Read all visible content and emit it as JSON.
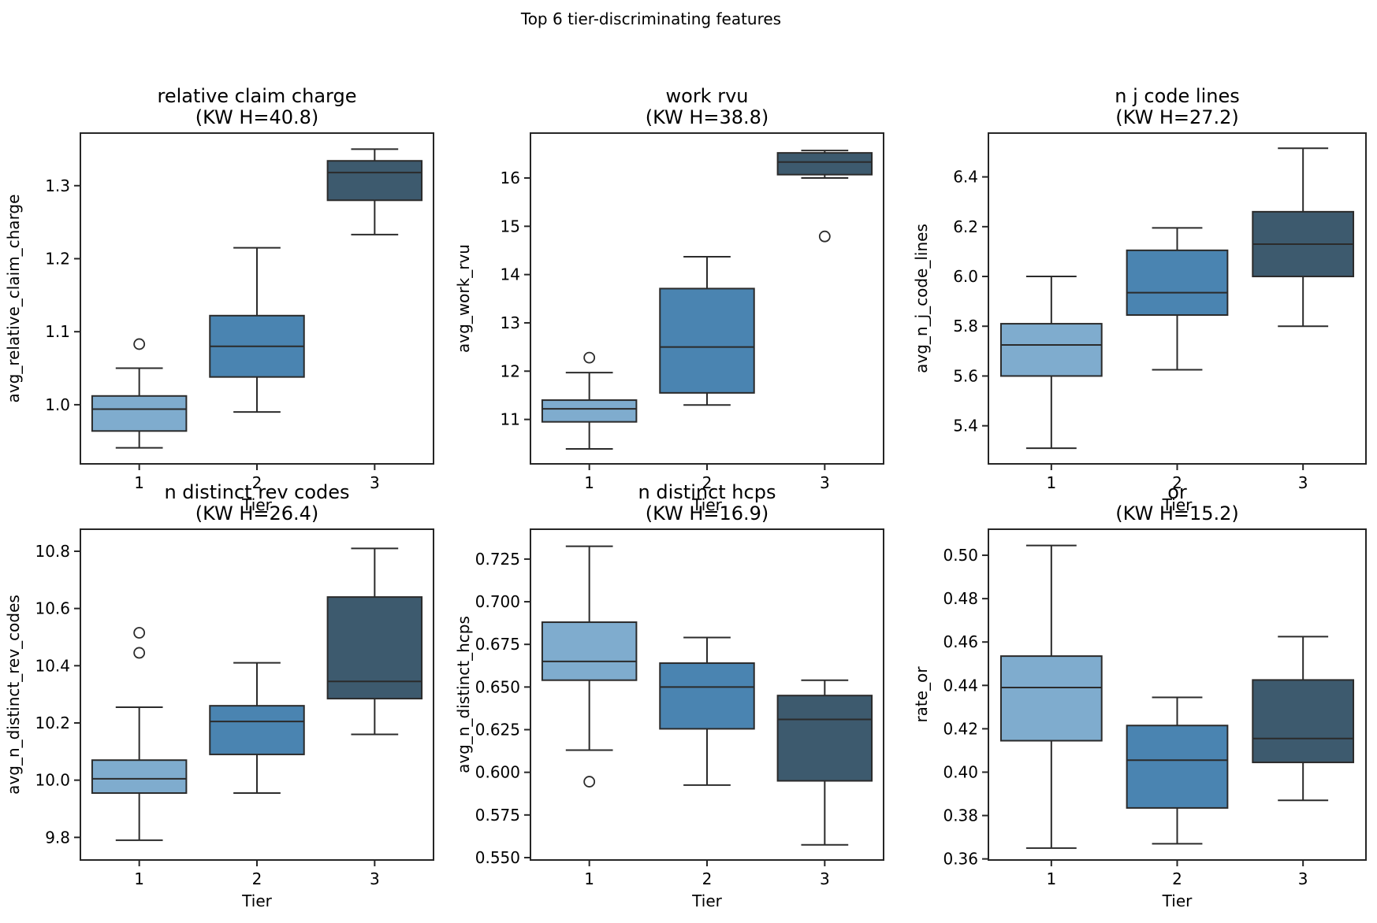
{
  "suptitle": "Top 6 tier-discriminating features",
  "palette": {
    "tier_fills": [
      "#7FACCE",
      "#4A84B1",
      "#3D5A6E"
    ],
    "edge": "#2B2B2B",
    "spine": "#262626",
    "text": "#000000",
    "background": "#FFFFFF"
  },
  "chart_data": [
    {
      "type": "box",
      "title": "relative claim charge",
      "subtitle": "(KW H=40.8)",
      "kw_h": 40.8,
      "ylabel": "avg_relative_claim_charge",
      "xlabel": "Tier",
      "categories": [
        "1",
        "2",
        "3"
      ],
      "ylim": [
        0.919,
        1.372
      ],
      "ytick_values": [
        1.0,
        1.1,
        1.2,
        1.3
      ],
      "ytick_labels": [
        "1.0",
        "1.1",
        "1.2",
        "1.3"
      ],
      "series": [
        {
          "tier": "1",
          "whisker_low": 0.941,
          "q1": 0.964,
          "median": 0.994,
          "q3": 1.012,
          "whisker_high": 1.05,
          "outliers": [
            1.083
          ]
        },
        {
          "tier": "2",
          "whisker_low": 0.99,
          "q1": 1.038,
          "median": 1.08,
          "q3": 1.122,
          "whisker_high": 1.215,
          "outliers": []
        },
        {
          "tier": "3",
          "whisker_low": 1.233,
          "q1": 1.28,
          "median": 1.318,
          "q3": 1.334,
          "whisker_high": 1.35,
          "outliers": []
        }
      ]
    },
    {
      "type": "box",
      "title": "work rvu",
      "subtitle": "(KW H=38.8)",
      "kw_h": 38.8,
      "ylabel": "avg_work_rvu",
      "xlabel": "Tier",
      "categories": [
        "1",
        "2",
        "3"
      ],
      "ylim": [
        10.08,
        16.93
      ],
      "ytick_values": [
        11,
        12,
        13,
        14,
        15,
        16
      ],
      "ytick_labels": [
        "11",
        "12",
        "13",
        "14",
        "15",
        "16"
      ],
      "series": [
        {
          "tier": "1",
          "whisker_low": 10.39,
          "q1": 10.95,
          "median": 11.22,
          "q3": 11.4,
          "whisker_high": 11.97,
          "outliers": [
            12.28
          ]
        },
        {
          "tier": "2",
          "whisker_low": 11.3,
          "q1": 11.55,
          "median": 12.5,
          "q3": 13.71,
          "whisker_high": 14.37,
          "outliers": []
        },
        {
          "tier": "3",
          "whisker_low": 16.0,
          "q1": 16.07,
          "median": 16.33,
          "q3": 16.52,
          "whisker_high": 16.57,
          "outliers": [
            14.79
          ]
        }
      ]
    },
    {
      "type": "box",
      "title": "n j code lines",
      "subtitle": "(KW H=27.2)",
      "kw_h": 27.2,
      "ylabel": "avg_n_j_code_lines",
      "xlabel": "Tier",
      "categories": [
        "1",
        "2",
        "3"
      ],
      "ylim": [
        5.247,
        6.576
      ],
      "ytick_values": [
        5.4,
        5.6,
        5.8,
        6.0,
        6.2,
        6.4
      ],
      "ytick_labels": [
        "5.4",
        "5.6",
        "5.8",
        "6.0",
        "6.2",
        "6.4"
      ],
      "series": [
        {
          "tier": "1",
          "whisker_low": 5.31,
          "q1": 5.6,
          "median": 5.725,
          "q3": 5.81,
          "whisker_high": 6.0,
          "outliers": []
        },
        {
          "tier": "2",
          "whisker_low": 5.625,
          "q1": 5.845,
          "median": 5.935,
          "q3": 6.105,
          "whisker_high": 6.195,
          "outliers": []
        },
        {
          "tier": "3",
          "whisker_low": 5.8,
          "q1": 6.0,
          "median": 6.13,
          "q3": 6.26,
          "whisker_high": 6.515,
          "outliers": []
        }
      ]
    },
    {
      "type": "box",
      "title": "n distinct rev codes",
      "subtitle": "(KW H=26.4)",
      "kw_h": 26.4,
      "ylabel": "avg_n_distinct_rev_codes",
      "xlabel": "Tier",
      "categories": [
        "1",
        "2",
        "3"
      ],
      "ylim": [
        9.721,
        10.877
      ],
      "ytick_values": [
        9.8,
        10.0,
        10.2,
        10.4,
        10.6,
        10.8
      ],
      "ytick_labels": [
        "9.8",
        "10.0",
        "10.2",
        "10.4",
        "10.6",
        "10.8"
      ],
      "series": [
        {
          "tier": "1",
          "whisker_low": 9.79,
          "q1": 9.955,
          "median": 10.005,
          "q3": 10.07,
          "whisker_high": 10.255,
          "outliers": [
            10.445,
            10.515
          ]
        },
        {
          "tier": "2",
          "whisker_low": 9.955,
          "q1": 10.09,
          "median": 10.205,
          "q3": 10.26,
          "whisker_high": 10.41,
          "outliers": []
        },
        {
          "tier": "3",
          "whisker_low": 10.16,
          "q1": 10.285,
          "median": 10.345,
          "q3": 10.64,
          "whisker_high": 10.81,
          "outliers": []
        }
      ]
    },
    {
      "type": "box",
      "title": "n distinct hcps",
      "subtitle": "(KW H=16.9)",
      "kw_h": 16.9,
      "ylabel": "avg_n_distinct_hcps",
      "xlabel": "Tier",
      "categories": [
        "1",
        "2",
        "3"
      ],
      "ylim": [
        0.5486,
        0.7425
      ],
      "ytick_values": [
        0.55,
        0.575,
        0.6,
        0.625,
        0.65,
        0.675,
        0.7,
        0.725
      ],
      "ytick_labels": [
        "0.550",
        "0.575",
        "0.600",
        "0.625",
        "0.650",
        "0.675",
        "0.700",
        "0.725"
      ],
      "series": [
        {
          "tier": "1",
          "whisker_low": 0.613,
          "q1": 0.654,
          "median": 0.665,
          "q3": 0.688,
          "whisker_high": 0.7325,
          "outliers": [
            0.5945
          ]
        },
        {
          "tier": "2",
          "whisker_low": 0.5925,
          "q1": 0.6255,
          "median": 0.65,
          "q3": 0.664,
          "whisker_high": 0.679,
          "outliers": []
        },
        {
          "tier": "3",
          "whisker_low": 0.5575,
          "q1": 0.595,
          "median": 0.631,
          "q3": 0.645,
          "whisker_high": 0.654,
          "outliers": []
        }
      ]
    },
    {
      "type": "box",
      "title": "or",
      "subtitle": "(KW H=15.2)",
      "kw_h": 15.2,
      "ylabel": "rate_or",
      "xlabel": "Tier",
      "categories": [
        "1",
        "2",
        "3"
      ],
      "ylim": [
        0.3595,
        0.512
      ],
      "ytick_values": [
        0.36,
        0.38,
        0.4,
        0.42,
        0.44,
        0.46,
        0.48,
        0.5
      ],
      "ytick_labels": [
        "0.36",
        "0.38",
        "0.40",
        "0.42",
        "0.44",
        "0.46",
        "0.48",
        "0.50"
      ],
      "series": [
        {
          "tier": "1",
          "whisker_low": 0.365,
          "q1": 0.4145,
          "median": 0.439,
          "q3": 0.4535,
          "whisker_high": 0.5045,
          "outliers": []
        },
        {
          "tier": "2",
          "whisker_low": 0.367,
          "q1": 0.3835,
          "median": 0.4055,
          "q3": 0.4215,
          "whisker_high": 0.4345,
          "outliers": []
        },
        {
          "tier": "3",
          "whisker_low": 0.387,
          "q1": 0.4045,
          "median": 0.4155,
          "q3": 0.4425,
          "whisker_high": 0.4625,
          "outliers": []
        }
      ]
    }
  ]
}
